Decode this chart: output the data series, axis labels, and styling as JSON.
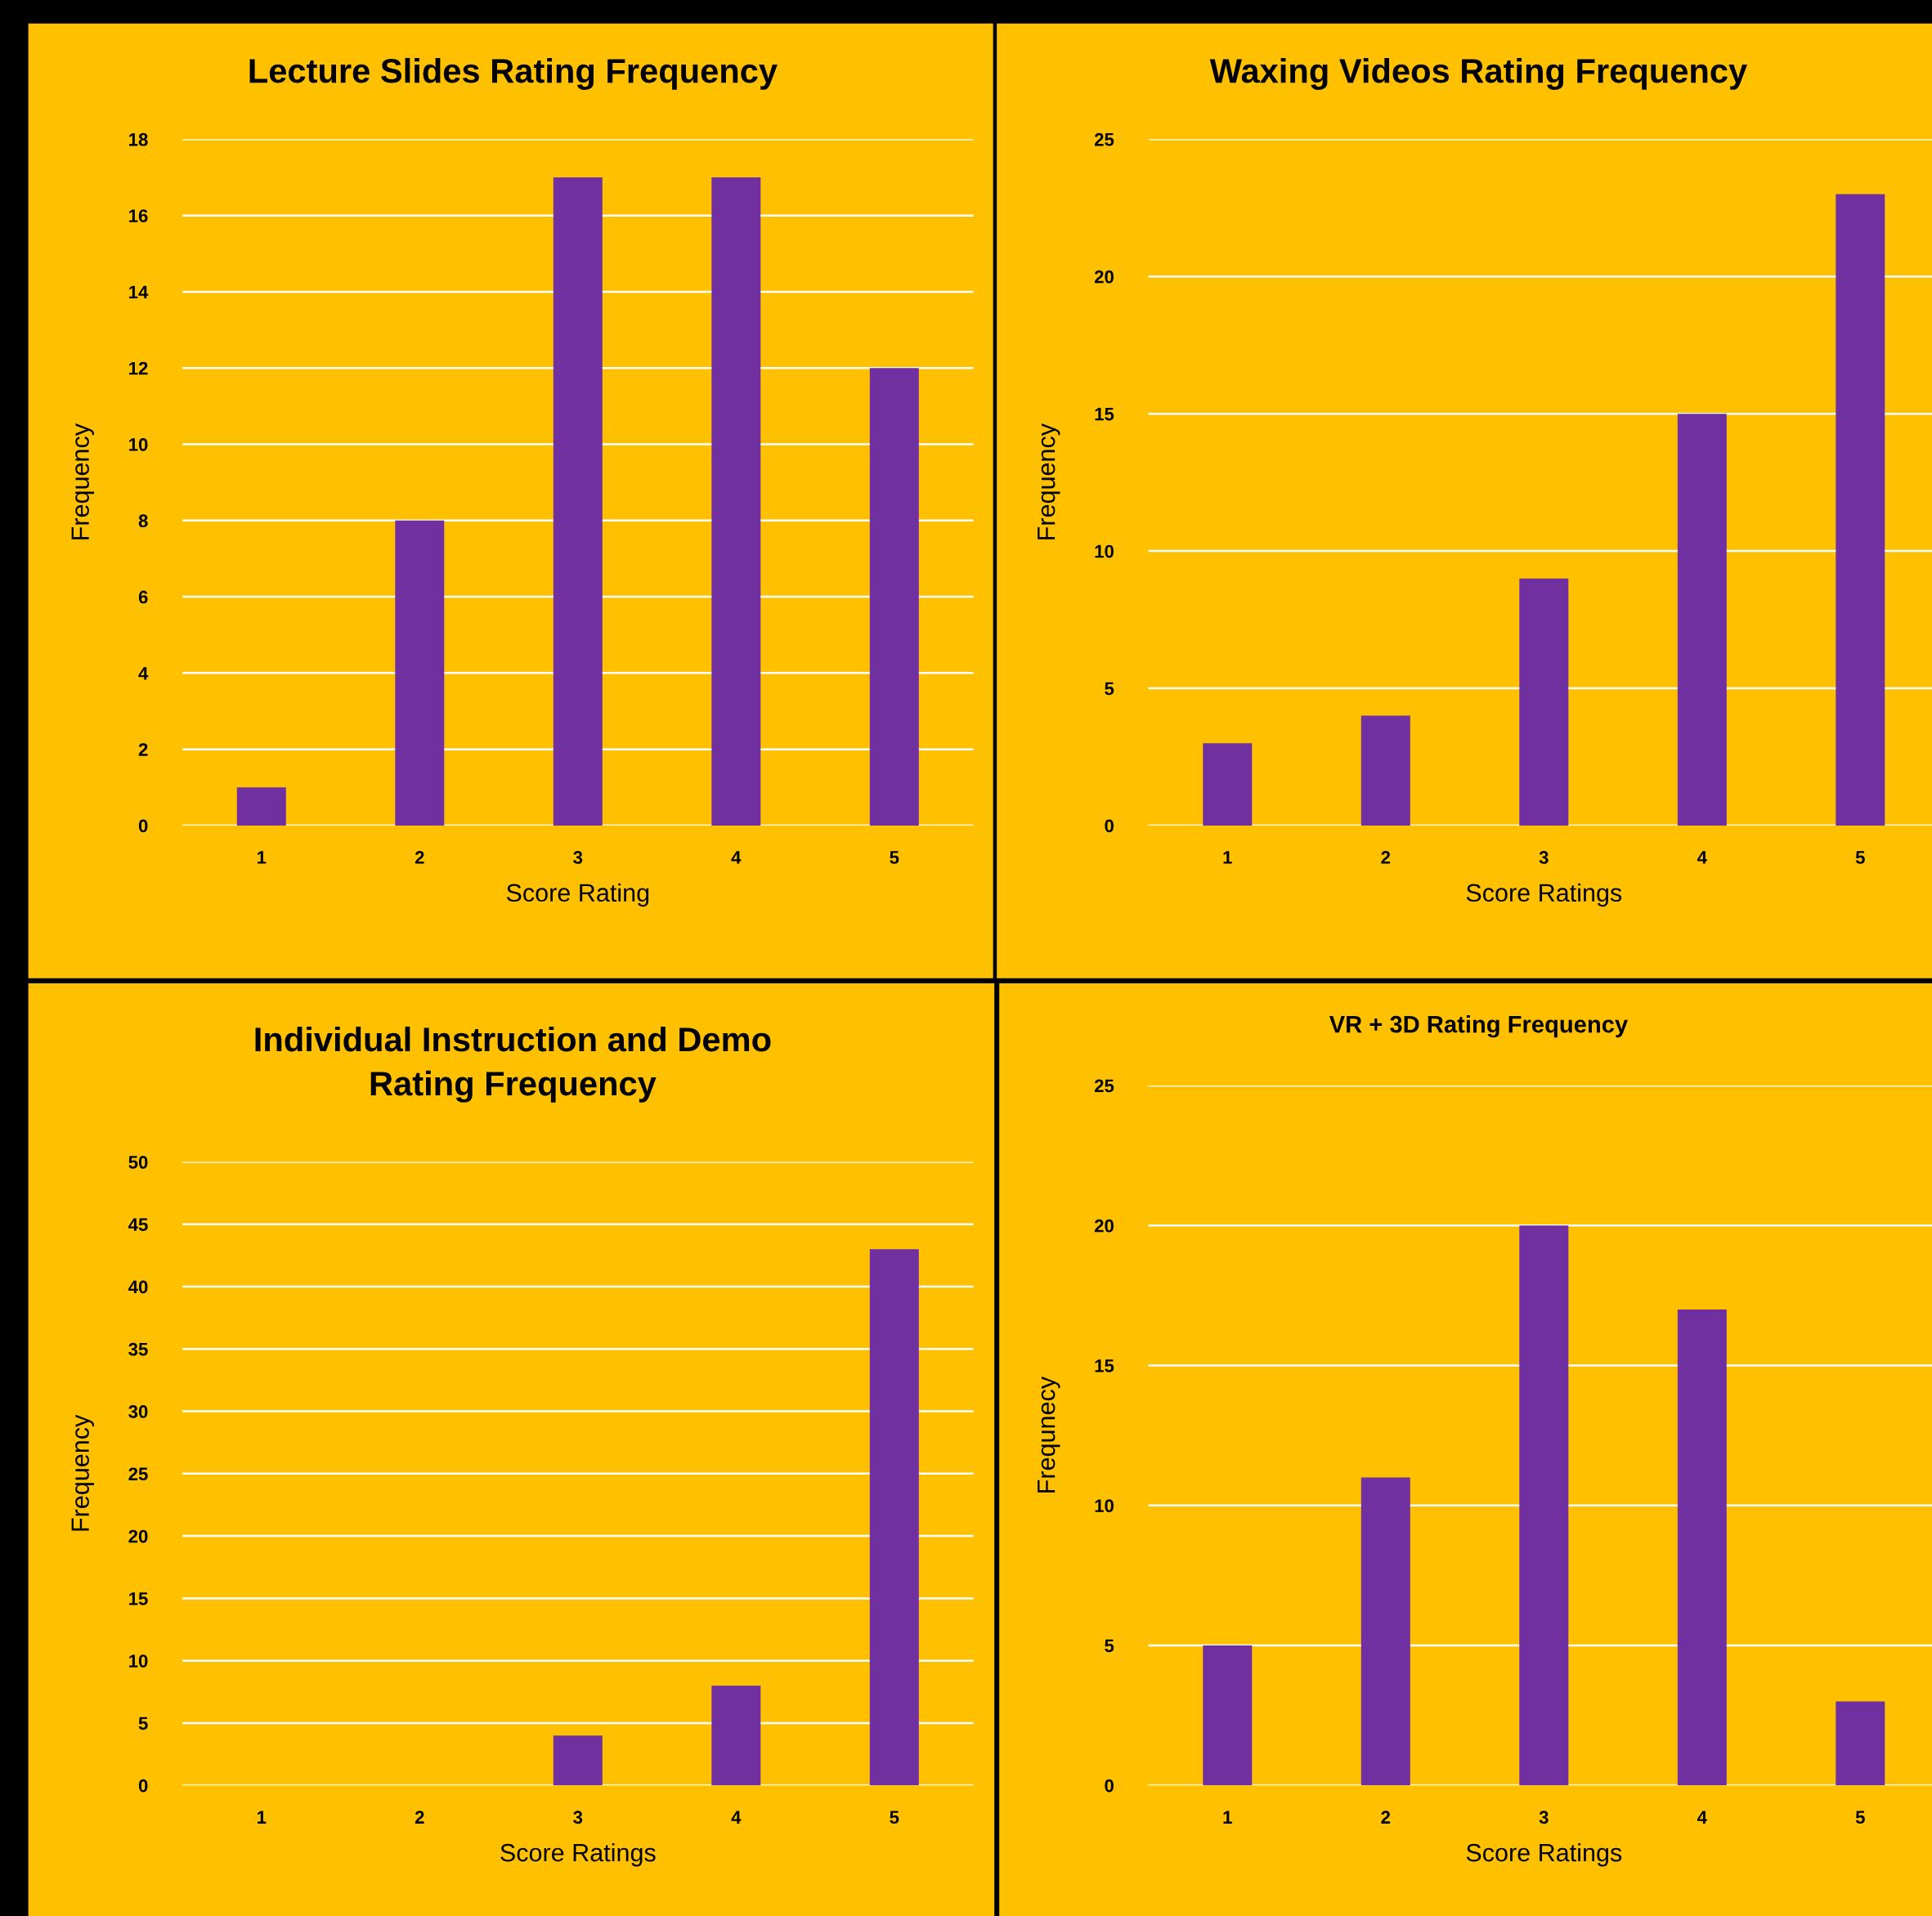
{
  "chart_data": [
    {
      "type": "bar",
      "title": "Lecture Slides Rating Frequency",
      "xlabel": "Score Rating",
      "ylabel": "Frequency",
      "categories": [
        "1",
        "2",
        "3",
        "4",
        "5"
      ],
      "values": [
        1,
        8,
        17,
        17,
        12
      ],
      "color": "#7030a0",
      "ylim": [
        0,
        18
      ],
      "yticks": [
        0,
        2,
        4,
        6,
        8,
        10,
        12,
        14,
        16,
        18
      ],
      "grid": "y"
    },
    {
      "type": "bar",
      "title": "Waxing Videos Rating Frequency",
      "xlabel": "Score Ratings",
      "ylabel": "Frequency",
      "categories": [
        "1",
        "2",
        "3",
        "4",
        "5"
      ],
      "values": [
        3,
        4,
        9,
        15,
        23
      ],
      "color": "#7030a0",
      "ylim": [
        0,
        25
      ],
      "yticks": [
        0,
        5,
        10,
        15,
        20,
        25
      ],
      "grid": "y"
    },
    {
      "type": "bar",
      "title": "Individual Instruction and Demo\nRating Frequency",
      "xlabel": "Score Ratings",
      "ylabel": "Frequency",
      "categories": [
        "1",
        "2",
        "3",
        "4",
        "5"
      ],
      "values": [
        0,
        0,
        4,
        8,
        43
      ],
      "color": "#7030a0",
      "ylim": [
        0,
        50
      ],
      "yticks": [
        0,
        5,
        10,
        15,
        20,
        25,
        30,
        35,
        40,
        45,
        50
      ],
      "grid": "y"
    },
    {
      "type": "bar",
      "title": "VR + 3D Rating Frequency",
      "xlabel": "Score Ratings",
      "ylabel": "Frequnecy",
      "categories": [
        "1",
        "2",
        "3",
        "4",
        "5"
      ],
      "values": [
        5,
        11,
        20,
        17,
        3
      ],
      "color": "#7030a0",
      "ylim": [
        0,
        25
      ],
      "yticks": [
        0,
        5,
        10,
        15,
        20,
        25
      ],
      "grid": "y"
    }
  ]
}
